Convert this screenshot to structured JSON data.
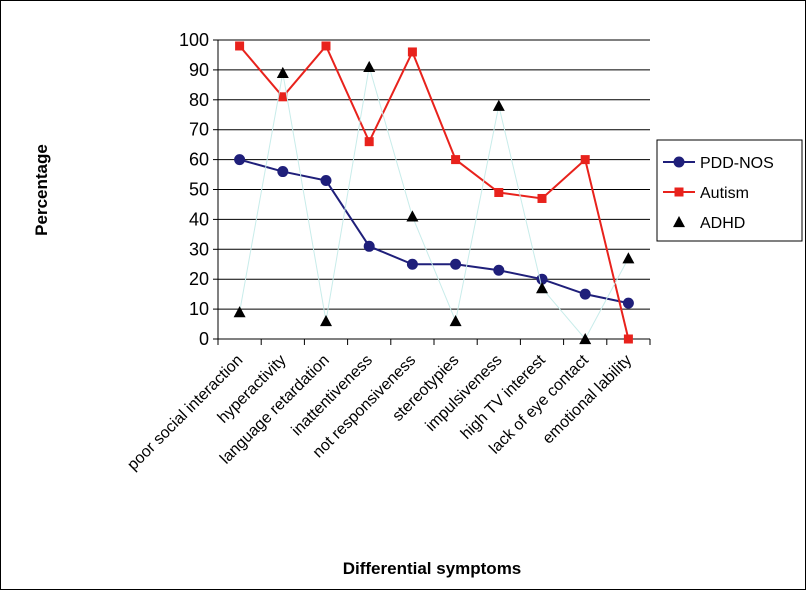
{
  "chart_data": {
    "type": "line",
    "title": "",
    "xlabel": "Differential symptoms",
    "ylabel": "Percentage",
    "ylim": [
      0,
      100
    ],
    "yticks": [
      0,
      10,
      20,
      30,
      40,
      50,
      60,
      70,
      80,
      90,
      100
    ],
    "grid": true,
    "legend_position": "right",
    "categories": [
      "poor social interaction",
      "hyperactivity",
      "language retardation",
      "inattentiveness",
      "not responsiveness",
      "stereotypies",
      "impulsiveness",
      "high TV interest",
      "lack of eye contact",
      "emotional lability"
    ],
    "series": [
      {
        "name": "PDD-NOS",
        "color": "#1f1f7a",
        "marker": "circle",
        "values": [
          60,
          56,
          53,
          31,
          25,
          25,
          23,
          20,
          15,
          12
        ]
      },
      {
        "name": "Autism",
        "color": "#e8221c",
        "marker": "square",
        "values": [
          98,
          81,
          98,
          66,
          96,
          60,
          49,
          47,
          60,
          0
        ]
      },
      {
        "name": "ADHD",
        "color": "#000000",
        "line_color": "#c8ecea",
        "marker": "triangle",
        "values": [
          9,
          89,
          6,
          91,
          41,
          6,
          78,
          17,
          0,
          27
        ]
      }
    ]
  }
}
